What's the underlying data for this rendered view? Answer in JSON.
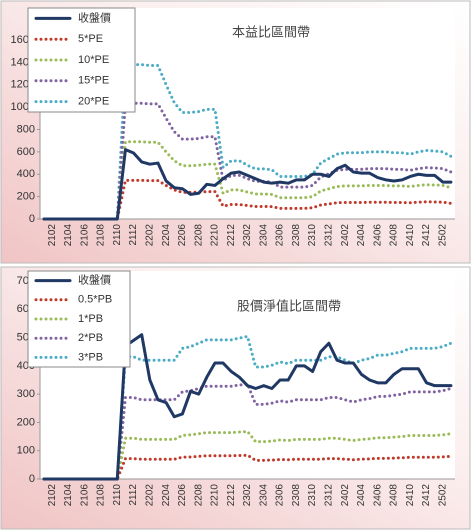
{
  "chart_data": [
    {
      "type": "line",
      "title": "本益比區間帶",
      "legend": "upper left",
      "grid": false,
      "categories": [
        null,
        "2102",
        null,
        "2104",
        null,
        "2106",
        null,
        "2108",
        null,
        "2110",
        null,
        "2112",
        null,
        "2202",
        null,
        "2204",
        null,
        "2206",
        null,
        "2208",
        null,
        "2210",
        null,
        "2212",
        null,
        "2302",
        null,
        "2304",
        null,
        "2306",
        null,
        "2308",
        null,
        "2310",
        null,
        "2312",
        null,
        "2402",
        null,
        "2404",
        null,
        "2406",
        null,
        "2408",
        null,
        "2410",
        null,
        "2412",
        null,
        "2502",
        null
      ],
      "ylim": [
        0,
        1600
      ],
      "yticks": [
        0,
        200,
        400,
        600,
        800,
        1000,
        1200,
        1400,
        1600
      ],
      "series": [
        {
          "name": "收盤價",
          "color": "#1f3864",
          "style": "solid",
          "values": [
            0,
            0,
            0,
            0,
            0,
            0,
            0,
            0,
            0,
            0,
            620,
            590,
            510,
            490,
            500,
            340,
            280,
            270,
            220,
            230,
            310,
            300,
            360,
            410,
            420,
            390,
            360,
            330,
            320,
            330,
            320,
            350,
            350,
            400,
            400,
            380,
            450,
            480,
            420,
            410,
            410,
            370,
            350,
            340,
            350,
            380,
            400,
            390,
            390,
            330,
            330
          ]
        },
        {
          "name": "5*PE",
          "color": "#c0392b",
          "style": "dotted",
          "values": [
            0,
            0,
            0,
            0,
            0,
            0,
            0,
            0,
            0,
            0,
            345,
            345,
            345,
            343,
            343,
            300,
            260,
            238,
            238,
            240,
            245,
            245,
            115,
            130,
            130,
            120,
            112,
            112,
            110,
            95,
            95,
            95,
            95,
            100,
            125,
            135,
            145,
            148,
            148,
            148,
            150,
            150,
            150,
            148,
            148,
            145,
            150,
            153,
            152,
            150,
            140
          ]
        },
        {
          "name": "10*PE",
          "color": "#9bbb59",
          "style": "dotted",
          "values": [
            0,
            0,
            0,
            0,
            0,
            0,
            0,
            0,
            0,
            0,
            690,
            690,
            690,
            686,
            686,
            600,
            520,
            476,
            476,
            480,
            490,
            490,
            230,
            260,
            260,
            240,
            224,
            224,
            220,
            190,
            190,
            190,
            190,
            200,
            250,
            270,
            290,
            296,
            296,
            296,
            300,
            300,
            300,
            296,
            296,
            290,
            300,
            306,
            304,
            300,
            280
          ]
        },
        {
          "name": "15*PE",
          "color": "#8064a2",
          "style": "dotted",
          "values": [
            0,
            0,
            0,
            0,
            0,
            0,
            0,
            0,
            0,
            0,
            1035,
            1035,
            1035,
            1029,
            1029,
            900,
            780,
            714,
            714,
            720,
            735,
            735,
            345,
            390,
            390,
            360,
            336,
            336,
            330,
            285,
            285,
            285,
            285,
            300,
            375,
            405,
            435,
            444,
            444,
            444,
            450,
            450,
            450,
            444,
            444,
            435,
            450,
            459,
            456,
            450,
            420
          ]
        },
        {
          "name": "20*PE",
          "color": "#4bacc6",
          "style": "dotted",
          "values": [
            0,
            0,
            0,
            0,
            0,
            0,
            0,
            0,
            0,
            0,
            1380,
            1380,
            1380,
            1372,
            1372,
            1200,
            1040,
            952,
            952,
            960,
            980,
            980,
            460,
            520,
            520,
            480,
            448,
            448,
            440,
            380,
            380,
            380,
            380,
            400,
            500,
            540,
            580,
            592,
            592,
            592,
            600,
            600,
            600,
            592,
            592,
            580,
            600,
            612,
            608,
            600,
            560
          ]
        }
      ]
    },
    {
      "type": "line",
      "title": "股價淨值比區間帶",
      "legend": "upper left",
      "grid": false,
      "categories": [
        null,
        "2102",
        null,
        "2104",
        null,
        "2106",
        null,
        "2108",
        null,
        "2110",
        null,
        "2112",
        null,
        "2202",
        null,
        "2204",
        null,
        "2206",
        null,
        "2208",
        null,
        "2210",
        null,
        "2212",
        null,
        "2302",
        null,
        "2304",
        null,
        "2306",
        null,
        "2308",
        null,
        "2310",
        null,
        "2312",
        null,
        "2402",
        null,
        "2404",
        null,
        "2406",
        null,
        "2408",
        null,
        "2410",
        null,
        "2412",
        null,
        "2502",
        null
      ],
      "ylim": [
        0,
        700
      ],
      "yticks": [
        0,
        100,
        200,
        300,
        400,
        500,
        600,
        700
      ],
      "series": [
        {
          "name": "收盤價",
          "color": "#1f3864",
          "style": "solid",
          "values": [
            0,
            0,
            0,
            0,
            0,
            0,
            0,
            0,
            0,
            0,
            470,
            490,
            510,
            350,
            280,
            270,
            220,
            230,
            310,
            300,
            360,
            410,
            410,
            380,
            360,
            330,
            320,
            330,
            320,
            350,
            350,
            400,
            400,
            380,
            450,
            480,
            420,
            410,
            410,
            370,
            350,
            340,
            340,
            370,
            390,
            390,
            390,
            340,
            330,
            330,
            330
          ]
        },
        {
          "name": "0.5*PB",
          "color": "#c0392b",
          "style": "dotted",
          "values": [
            0,
            0,
            0,
            0,
            0,
            0,
            0,
            0,
            0,
            0,
            72,
            72,
            70,
            70,
            70,
            70,
            70,
            77,
            78,
            80,
            82,
            82,
            82,
            82,
            83,
            84,
            66,
            66,
            67,
            69,
            68,
            70,
            70,
            70,
            70,
            72,
            72,
            70,
            68,
            70,
            71,
            73,
            73,
            74,
            75,
            77,
            77,
            77,
            77,
            78,
            80
          ]
        },
        {
          "name": "1*PB",
          "color": "#9bbb59",
          "style": "dotted",
          "values": [
            0,
            0,
            0,
            0,
            0,
            0,
            0,
            0,
            0,
            0,
            144,
            144,
            140,
            140,
            140,
            140,
            140,
            154,
            156,
            160,
            164,
            164,
            164,
            164,
            166,
            168,
            132,
            132,
            134,
            138,
            136,
            140,
            140,
            140,
            140,
            144,
            144,
            140,
            136,
            140,
            142,
            146,
            146,
            148,
            150,
            154,
            154,
            154,
            154,
            156,
            160
          ]
        },
        {
          "name": "2*PB",
          "color": "#8064a2",
          "style": "dotted",
          "values": [
            0,
            0,
            0,
            0,
            0,
            0,
            0,
            0,
            0,
            0,
            288,
            288,
            280,
            280,
            280,
            280,
            280,
            308,
            312,
            320,
            328,
            328,
            328,
            328,
            332,
            336,
            264,
            264,
            268,
            276,
            272,
            280,
            280,
            280,
            280,
            288,
            288,
            280,
            272,
            280,
            284,
            292,
            292,
            296,
            300,
            308,
            308,
            308,
            308,
            312,
            320
          ]
        },
        {
          "name": "3*PB",
          "color": "#4bacc6",
          "style": "dotted",
          "values": [
            0,
            0,
            0,
            0,
            0,
            0,
            0,
            0,
            0,
            0,
            432,
            432,
            420,
            420,
            420,
            420,
            420,
            462,
            468,
            480,
            492,
            492,
            492,
            492,
            498,
            504,
            396,
            396,
            402,
            414,
            408,
            420,
            420,
            420,
            420,
            432,
            432,
            420,
            408,
            420,
            426,
            438,
            438,
            444,
            450,
            462,
            462,
            462,
            462,
            468,
            480
          ]
        }
      ]
    }
  ]
}
